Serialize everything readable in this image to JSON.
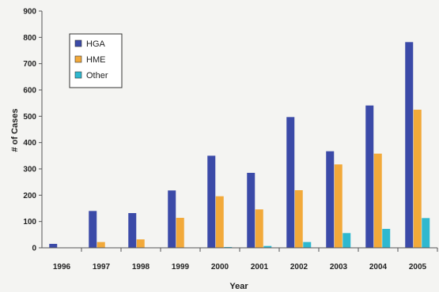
{
  "chart_data": {
    "type": "bar",
    "title": "",
    "xlabel": "Year",
    "ylabel": "# of Cases",
    "ylim": [
      0,
      900
    ],
    "yticks": [
      0,
      100,
      200,
      300,
      400,
      500,
      600,
      700,
      800,
      900
    ],
    "categories": [
      "1996",
      "1997",
      "1998",
      "1999",
      "2000",
      "2001",
      "2002",
      "2003",
      "2004",
      "2005"
    ],
    "grid": false,
    "legend_position": "top-left",
    "series": [
      {
        "name": "HGA",
        "color": "#3b4aa8",
        "values": [
          15,
          140,
          132,
          218,
          350,
          285,
          497,
          367,
          541,
          782
        ]
      },
      {
        "name": "HME",
        "color": "#f2a93a",
        "values": [
          0,
          22,
          32,
          114,
          196,
          146,
          219,
          317,
          358,
          525
        ]
      },
      {
        "name": "Other",
        "color": "#2fb8cf",
        "values": [
          0,
          0,
          0,
          0,
          3,
          7,
          22,
          56,
          72,
          113
        ]
      }
    ]
  }
}
